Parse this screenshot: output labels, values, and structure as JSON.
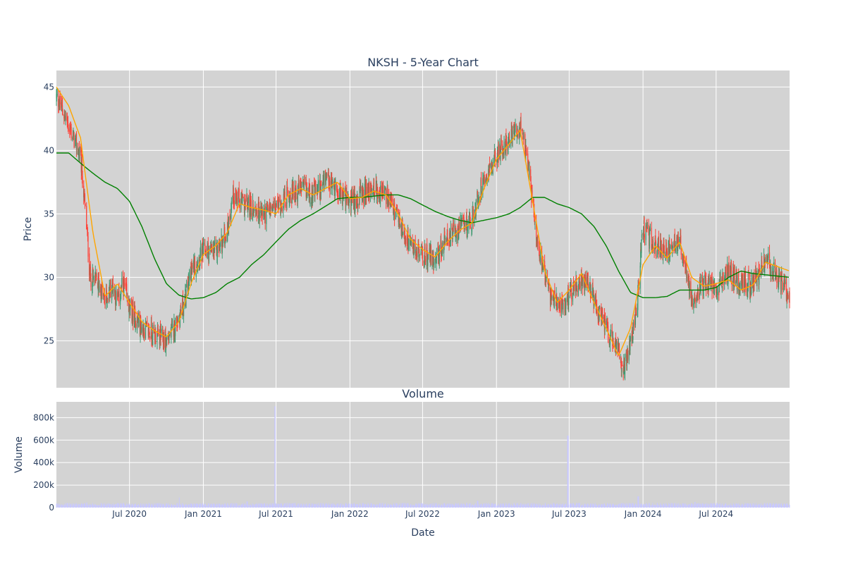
{
  "chart_data": {
    "type": "candlestick",
    "title": "NKSH - 5-Year Chart",
    "subplot_title": "Volume",
    "xlabel": "Date",
    "ylabel": "Price",
    "volume_ylabel": "Volume",
    "x_range": [
      "2020-01-01",
      "2024-12-31"
    ],
    "price_ylim": [
      21.3,
      46.3
    ],
    "volume_ylim": [
      0,
      940000
    ],
    "grid": true,
    "x_ticks": [
      {
        "date": "2020-07-01",
        "label": "Jul 2020"
      },
      {
        "date": "2021-01-01",
        "label": "Jan 2021"
      },
      {
        "date": "2021-07-01",
        "label": "Jul 2021"
      },
      {
        "date": "2022-01-01",
        "label": "Jan 2022"
      },
      {
        "date": "2022-07-01",
        "label": "Jul 2022"
      },
      {
        "date": "2023-01-01",
        "label": "Jan 2023"
      },
      {
        "date": "2023-07-01",
        "label": "Jul 2023"
      },
      {
        "date": "2024-01-01",
        "label": "Jan 2024"
      },
      {
        "date": "2024-07-01",
        "label": "Jul 2024"
      }
    ],
    "price_ticks": [
      {
        "value": 25,
        "label": "25"
      },
      {
        "value": 30,
        "label": "30"
      },
      {
        "value": 35,
        "label": "35"
      },
      {
        "value": 40,
        "label": "40"
      },
      {
        "value": 45,
        "label": "45"
      }
    ],
    "volume_ticks": [
      {
        "value": 0,
        "label": "0"
      },
      {
        "value": 200000,
        "label": "200k"
      },
      {
        "value": 400000,
        "label": "400k"
      },
      {
        "value": 600000,
        "label": "600k"
      },
      {
        "value": 800000,
        "label": "800k"
      }
    ],
    "colors": {
      "increasing": "#3d9970",
      "decreasing": "#ff4136",
      "ma_short": "#ffa500",
      "ma_long": "#008000",
      "volume_bar": "#c8c8ff",
      "plot_bg": "#d3d3d3"
    },
    "price_path": [
      [
        "2020-01-01",
        44.2
      ],
      [
        "2020-01-15",
        43.3
      ],
      [
        "2020-02-01",
        41.9
      ],
      [
        "2020-02-15",
        40.8
      ],
      [
        "2020-03-01",
        39.5
      ],
      [
        "2020-03-15",
        34.5
      ],
      [
        "2020-03-25",
        30.0
      ],
      [
        "2020-04-15",
        29.5
      ],
      [
        "2020-05-01",
        28.2
      ],
      [
        "2020-05-20",
        29.5
      ],
      [
        "2020-06-01",
        28.0
      ],
      [
        "2020-06-15",
        29.5
      ],
      [
        "2020-07-01",
        27.5
      ],
      [
        "2020-08-01",
        26.0
      ],
      [
        "2020-09-01",
        25.5
      ],
      [
        "2020-10-01",
        25.0
      ],
      [
        "2020-10-20",
        26.0
      ],
      [
        "2020-11-15",
        28.0
      ],
      [
        "2020-12-01",
        30.5
      ],
      [
        "2021-01-01",
        32.0
      ],
      [
        "2021-02-01",
        32.0
      ],
      [
        "2021-03-01",
        33.5
      ],
      [
        "2021-03-15",
        36.5
      ],
      [
        "2021-04-01",
        36.0
      ],
      [
        "2021-05-01",
        35.5
      ],
      [
        "2021-06-01",
        35.0
      ],
      [
        "2021-07-01",
        35.5
      ],
      [
        "2021-08-01",
        36.5
      ],
      [
        "2021-09-01",
        37.0
      ],
      [
        "2021-10-01",
        36.5
      ],
      [
        "2021-11-01",
        37.5
      ],
      [
        "2021-12-01",
        37.0
      ],
      [
        "2022-01-01",
        35.8
      ],
      [
        "2022-02-01",
        36.5
      ],
      [
        "2022-03-01",
        37.0
      ],
      [
        "2022-04-01",
        36.5
      ],
      [
        "2022-05-01",
        34.5
      ],
      [
        "2022-06-01",
        32.5
      ],
      [
        "2022-07-01",
        31.8
      ],
      [
        "2022-08-01",
        31.5
      ],
      [
        "2022-09-01",
        33.0
      ],
      [
        "2022-10-01",
        33.8
      ],
      [
        "2022-11-01",
        34.5
      ],
      [
        "2022-12-01",
        38.0
      ],
      [
        "2023-01-01",
        39.5
      ],
      [
        "2023-02-01",
        41.0
      ],
      [
        "2023-03-01",
        41.8
      ],
      [
        "2023-03-20",
        39.0
      ],
      [
        "2023-04-15",
        32.5
      ],
      [
        "2023-05-15",
        28.5
      ],
      [
        "2023-06-15",
        27.5
      ],
      [
        "2023-07-15",
        29.5
      ],
      [
        "2023-08-15",
        29.5
      ],
      [
        "2023-09-15",
        27.0
      ],
      [
        "2023-10-15",
        25.0
      ],
      [
        "2023-11-15",
        23.0
      ],
      [
        "2023-12-15",
        27.0
      ],
      [
        "2024-01-01",
        34.0
      ],
      [
        "2024-02-01",
        32.5
      ],
      [
        "2024-03-01",
        32.0
      ],
      [
        "2024-04-01",
        33.0
      ],
      [
        "2024-05-01",
        28.5
      ],
      [
        "2024-06-01",
        29.5
      ],
      [
        "2024-07-01",
        29.0
      ],
      [
        "2024-08-01",
        30.5
      ],
      [
        "2024-09-01",
        29.5
      ],
      [
        "2024-10-01",
        29.5
      ],
      [
        "2024-11-01",
        31.5
      ],
      [
        "2024-12-01",
        30.0
      ],
      [
        "2024-12-31",
        28.5
      ]
    ],
    "ma_short": [
      [
        "2020-01-01",
        45.0
      ],
      [
        "2020-02-01",
        43.5
      ],
      [
        "2020-03-01",
        41.0
      ],
      [
        "2020-04-01",
        33.5
      ],
      [
        "2020-05-01",
        28.5
      ],
      [
        "2020-06-01",
        29.5
      ],
      [
        "2020-07-01",
        28.0
      ],
      [
        "2020-08-01",
        26.5
      ],
      [
        "2020-09-01",
        25.8
      ],
      [
        "2020-10-01",
        25.3
      ],
      [
        "2020-11-01",
        26.5
      ],
      [
        "2020-12-01",
        29.5
      ],
      [
        "2021-01-01",
        31.8
      ],
      [
        "2021-02-01",
        32.5
      ],
      [
        "2021-03-01",
        33.5
      ],
      [
        "2021-04-01",
        35.8
      ],
      [
        "2021-05-01",
        35.5
      ],
      [
        "2021-06-01",
        35.3
      ],
      [
        "2021-07-01",
        35.0
      ],
      [
        "2021-08-01",
        36.5
      ],
      [
        "2021-09-01",
        37.0
      ],
      [
        "2021-10-01",
        36.5
      ],
      [
        "2021-11-01",
        37.0
      ],
      [
        "2021-12-01",
        37.5
      ],
      [
        "2022-01-01",
        36.2
      ],
      [
        "2022-02-01",
        36.3
      ],
      [
        "2022-03-01",
        36.8
      ],
      [
        "2022-04-01",
        36.5
      ],
      [
        "2022-05-01",
        35.0
      ],
      [
        "2022-06-01",
        33.0
      ],
      [
        "2022-07-01",
        32.2
      ],
      [
        "2022-08-01",
        31.6
      ],
      [
        "2022-09-01",
        32.8
      ],
      [
        "2022-10-01",
        33.7
      ],
      [
        "2022-11-01",
        34.3
      ],
      [
        "2022-12-01",
        37.0
      ],
      [
        "2023-01-01",
        39.3
      ],
      [
        "2023-02-01",
        40.5
      ],
      [
        "2023-03-01",
        41.6
      ],
      [
        "2023-04-01",
        36.0
      ],
      [
        "2023-05-01",
        30.5
      ],
      [
        "2023-06-01",
        28.0
      ],
      [
        "2023-07-01",
        29.0
      ],
      [
        "2023-08-01",
        30.3
      ],
      [
        "2023-09-01",
        28.0
      ],
      [
        "2023-10-01",
        26.0
      ],
      [
        "2023-11-01",
        23.8
      ],
      [
        "2023-12-01",
        26.0
      ],
      [
        "2024-01-01",
        31.0
      ],
      [
        "2024-02-01",
        32.5
      ],
      [
        "2024-03-01",
        31.5
      ],
      [
        "2024-04-01",
        32.8
      ],
      [
        "2024-05-01",
        30.0
      ],
      [
        "2024-06-01",
        29.3
      ],
      [
        "2024-07-01",
        29.5
      ],
      [
        "2024-08-01",
        29.8
      ],
      [
        "2024-09-01",
        29.0
      ],
      [
        "2024-10-01",
        29.4
      ],
      [
        "2024-11-01",
        31.2
      ],
      [
        "2024-12-31",
        30.5
      ]
    ],
    "ma_long": [
      [
        "2020-01-01",
        39.8
      ],
      [
        "2020-02-01",
        39.8
      ],
      [
        "2020-03-01",
        39.0
      ],
      [
        "2020-04-01",
        38.2
      ],
      [
        "2020-05-01",
        37.5
      ],
      [
        "2020-06-01",
        37.0
      ],
      [
        "2020-07-01",
        36.0
      ],
      [
        "2020-08-01",
        34.0
      ],
      [
        "2020-09-01",
        31.5
      ],
      [
        "2020-10-01",
        29.5
      ],
      [
        "2020-11-01",
        28.6
      ],
      [
        "2020-12-01",
        28.3
      ],
      [
        "2021-01-01",
        28.4
      ],
      [
        "2021-02-01",
        28.8
      ],
      [
        "2021-03-01",
        29.5
      ],
      [
        "2021-04-01",
        30.0
      ],
      [
        "2021-05-01",
        31.0
      ],
      [
        "2021-06-01",
        31.8
      ],
      [
        "2021-07-01",
        32.8
      ],
      [
        "2021-08-01",
        33.8
      ],
      [
        "2021-09-01",
        34.5
      ],
      [
        "2021-10-01",
        35.0
      ],
      [
        "2021-11-01",
        35.6
      ],
      [
        "2021-12-01",
        36.2
      ],
      [
        "2022-01-01",
        36.3
      ],
      [
        "2022-02-01",
        36.3
      ],
      [
        "2022-03-01",
        36.4
      ],
      [
        "2022-04-01",
        36.5
      ],
      [
        "2022-05-01",
        36.5
      ],
      [
        "2022-06-01",
        36.2
      ],
      [
        "2022-07-01",
        35.7
      ],
      [
        "2022-08-01",
        35.2
      ],
      [
        "2022-09-01",
        34.8
      ],
      [
        "2022-10-01",
        34.5
      ],
      [
        "2022-11-01",
        34.3
      ],
      [
        "2022-12-01",
        34.5
      ],
      [
        "2023-01-01",
        34.7
      ],
      [
        "2023-02-01",
        35.0
      ],
      [
        "2023-03-01",
        35.5
      ],
      [
        "2023-04-01",
        36.3
      ],
      [
        "2023-05-01",
        36.3
      ],
      [
        "2023-06-01",
        35.8
      ],
      [
        "2023-07-01",
        35.5
      ],
      [
        "2023-08-01",
        35.0
      ],
      [
        "2023-09-01",
        34.0
      ],
      [
        "2023-10-01",
        32.5
      ],
      [
        "2023-11-01",
        30.5
      ],
      [
        "2023-12-01",
        28.8
      ],
      [
        "2024-01-01",
        28.4
      ],
      [
        "2024-02-01",
        28.4
      ],
      [
        "2024-03-01",
        28.5
      ],
      [
        "2024-04-01",
        29.0
      ],
      [
        "2024-05-01",
        29.0
      ],
      [
        "2024-06-01",
        29.0
      ],
      [
        "2024-07-01",
        29.2
      ],
      [
        "2024-08-01",
        30.0
      ],
      [
        "2024-09-01",
        30.5
      ],
      [
        "2024-10-01",
        30.3
      ],
      [
        "2024-11-01",
        30.2
      ],
      [
        "2024-12-31",
        30.0
      ]
    ],
    "volume_base": 28000,
    "volume_spikes": [
      [
        "2020-03-16",
        45000
      ],
      [
        "2020-11-01",
        90000
      ],
      [
        "2021-04-20",
        55000
      ],
      [
        "2021-06-28",
        900000
      ],
      [
        "2022-11-15",
        60000
      ],
      [
        "2023-06-28",
        640000
      ],
      [
        "2023-12-20",
        100000
      ],
      [
        "2024-05-10",
        50000
      ]
    ]
  }
}
